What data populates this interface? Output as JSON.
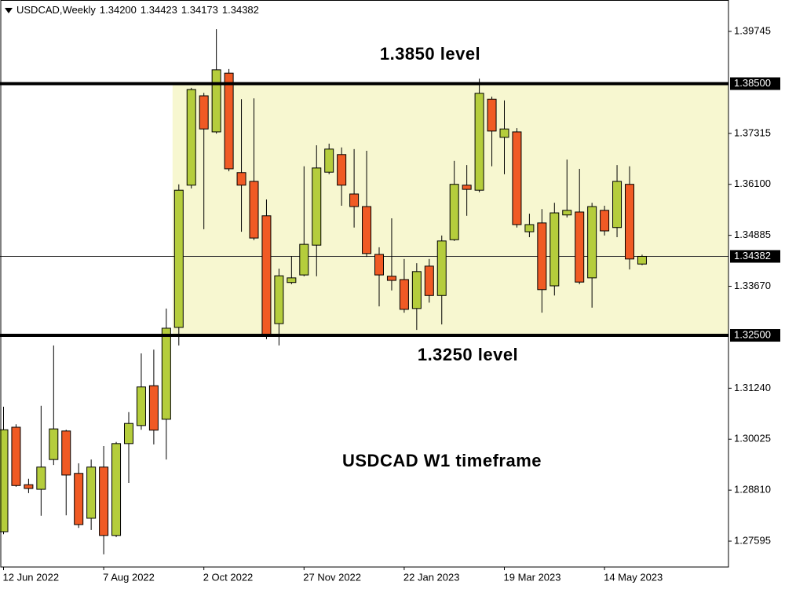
{
  "chart_data": {
    "type": "candlestick",
    "header": {
      "symbol": "USDCAD,Weekly",
      "ohlc": [
        "1.34200",
        "1.34423",
        "1.34173",
        "1.34382"
      ]
    },
    "categories": [
      "12 Jun 2022",
      null,
      null,
      null,
      null,
      null,
      null,
      null,
      "7 Aug 2022",
      null,
      null,
      null,
      null,
      null,
      null,
      null,
      "2 Oct 2022",
      null,
      null,
      null,
      null,
      null,
      null,
      null,
      "27 Nov 2022",
      null,
      null,
      null,
      null,
      null,
      null,
      null,
      "22 Jan 2023",
      null,
      null,
      null,
      null,
      null,
      null,
      null,
      "19 Mar 2023",
      null,
      null,
      null,
      null,
      null,
      null,
      null,
      "14 May 2023",
      null,
      null,
      null
    ],
    "open": [
      1.2782,
      1.3031,
      1.2894,
      1.2883,
      1.2954,
      1.3022,
      1.2921,
      1.2814,
      1.2936,
      1.2773,
      1.2992,
      1.3035,
      1.313,
      1.305,
      1.3269,
      1.3608,
      1.3821,
      1.3735,
      1.3875,
      1.3638,
      1.3617,
      1.3535,
      1.3278,
      1.3376,
      1.3394,
      1.3465,
      1.3639,
      1.3681,
      1.3587,
      1.3557,
      1.3443,
      1.3391,
      1.3383,
      1.3314,
      1.3415,
      1.3345,
      1.3478,
      1.3608,
      1.3596,
      1.3813,
      1.3722,
      1.3735,
      1.3497,
      1.3518,
      1.3368,
      1.3537,
      1.3544,
      1.3387,
      1.3548,
      1.3507,
      1.361,
      1.342
    ],
    "high": [
      1.308,
      1.3038,
      1.2908,
      1.3082,
      1.3226,
      1.3025,
      1.2945,
      1.2954,
      1.2986,
      1.2996,
      1.3067,
      1.3207,
      1.3216,
      1.3314,
      1.361,
      1.384,
      1.3828,
      1.398,
      1.3885,
      1.3813,
      1.3815,
      1.3574,
      1.3409,
      1.3439,
      1.3653,
      1.3703,
      1.3707,
      1.3698,
      1.3694,
      1.369,
      1.346,
      1.3529,
      1.3432,
      1.3422,
      1.3432,
      1.3488,
      1.3666,
      1.3656,
      1.3862,
      1.3819,
      1.381,
      1.3744,
      1.354,
      1.3551,
      1.3566,
      1.3669,
      1.3647,
      1.3566,
      1.3559,
      1.3656,
      1.3653,
      1.34423
    ],
    "low": [
      1.2776,
      1.2889,
      1.2874,
      1.282,
      1.2941,
      1.2821,
      1.2791,
      1.2786,
      1.2728,
      1.2769,
      1.2898,
      1.3025,
      1.299,
      1.2954,
      1.3226,
      1.36,
      1.3503,
      1.3731,
      1.3641,
      1.3497,
      1.3477,
      1.3241,
      1.3226,
      1.3372,
      1.3391,
      1.3391,
      1.3634,
      1.3559,
      1.3507,
      1.3437,
      1.3319,
      1.3357,
      1.3304,
      1.3263,
      1.3328,
      1.3276,
      1.3475,
      1.3535,
      1.3591,
      1.3653,
      1.3634,
      1.3507,
      1.3484,
      1.3304,
      1.3345,
      1.3531,
      1.3372,
      1.3316,
      1.3488,
      1.3484,
      1.3407,
      1.34173
    ],
    "close": [
      1.3025,
      1.2892,
      1.2885,
      1.2936,
      1.3027,
      1.2917,
      1.2799,
      1.2936,
      1.2773,
      1.2992,
      1.304,
      1.3127,
      1.3024,
      1.3267,
      1.3596,
      1.3836,
      1.3742,
      1.3883,
      1.3647,
      1.3608,
      1.3482,
      1.325,
      1.3392,
      1.3387,
      1.3467,
      1.3649,
      1.3694,
      1.3608,
      1.3557,
      1.3445,
      1.3394,
      1.3381,
      1.3312,
      1.3402,
      1.3345,
      1.3475,
      1.361,
      1.3598,
      1.3827,
      1.3737,
      1.3742,
      1.3514,
      1.3514,
      1.3359,
      1.3542,
      1.3548,
      1.3377,
      1.3557,
      1.3499,
      1.3617,
      1.3432,
      1.34382
    ],
    "up_color": "#b5cd3c",
    "down_color": "#f05a24",
    "ylim": [
      1.26978,
      1.40494
    ],
    "yticks": [
      {
        "value": 1.39745,
        "label": "1.39745"
      },
      {
        "value": 1.37315,
        "label": "1.37315"
      },
      {
        "value": 1.361,
        "label": "1.36100"
      },
      {
        "value": 1.34885,
        "label": "1.34885"
      },
      {
        "value": 1.3367,
        "label": "1.33670"
      },
      {
        "value": 1.3124,
        "label": "1.31240"
      },
      {
        "value": 1.30025,
        "label": "1.30025"
      },
      {
        "value": 1.2881,
        "label": "1.28810"
      },
      {
        "value": 1.27595,
        "label": "1.27595"
      }
    ],
    "grid": false,
    "current_price": {
      "value": 1.34382,
      "label": "1.34382"
    },
    "levels": [
      {
        "value": 1.385,
        "label": "1.38500",
        "annotation": "1.3850 level"
      },
      {
        "value": 1.325,
        "label": "1.32500",
        "annotation": "1.3250 level"
      }
    ],
    "zone_color": "#f7f7d0",
    "annotation": "USDCAD W1 timeframe"
  }
}
